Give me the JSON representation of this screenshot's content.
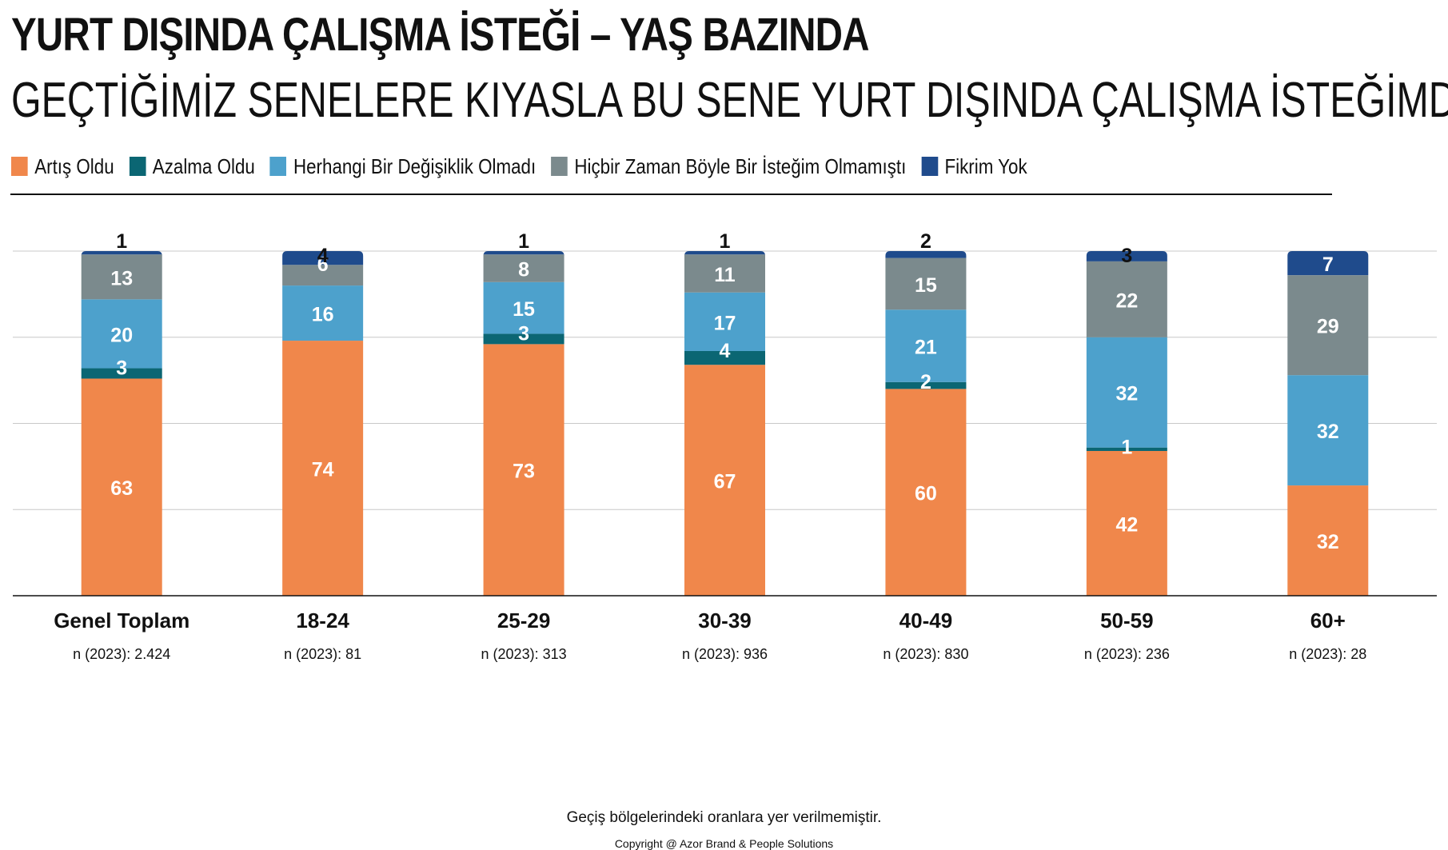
{
  "header": {
    "title": "YURT DIŞINDA ÇALIŞMA İSTEĞİ – YAŞ BAZINDA",
    "subtitle": "GEÇTİĞİMİZ SENELERE KIYASLA BU SENE YURT DIŞINDA ÇALIŞMA İSTEĞİMDE..."
  },
  "footer": {
    "note": "Geçiş bölgelerindeki oranlara yer verilmemiştir.",
    "copyright": "Copyright @ Azor Brand & People Solutions"
  },
  "chart_data": {
    "type": "bar",
    "stacked": true,
    "categories": [
      "Genel Toplam",
      "18-24",
      "25-29",
      "30-39",
      "40-49",
      "50-59",
      "60+"
    ],
    "sample_sizes": [
      "n (2023): 2.424",
      "n (2023): 81",
      "n (2023): 313",
      "n (2023): 936",
      "n (2023): 830",
      "n (2023): 236",
      "n (2023): 28"
    ],
    "series": [
      {
        "name": "Artış Oldu",
        "color": "#f0874b",
        "values": [
          63,
          74,
          73,
          67,
          60,
          42,
          32
        ]
      },
      {
        "name": "Azalma Oldu",
        "color": "#0b6673",
        "values": [
          3,
          0,
          3,
          4,
          2,
          1,
          0
        ]
      },
      {
        "name": "Herhangi Bir Değişiklik Olmadı",
        "color": "#4da1cc",
        "values": [
          20,
          16,
          15,
          17,
          21,
          32,
          32
        ]
      },
      {
        "name": "Hiçbir Zaman Böyle Bir İsteğim Olmamıştı",
        "color": "#7b8a8d",
        "values": [
          13,
          6,
          8,
          11,
          15,
          22,
          29
        ]
      },
      {
        "name": "Fikrim Yok",
        "color": "#1f4b8c",
        "values": [
          1,
          4,
          1,
          1,
          2,
          3,
          7
        ]
      }
    ],
    "ylim": [
      0,
      100
    ],
    "grid": true,
    "legend_position": "top-left"
  }
}
